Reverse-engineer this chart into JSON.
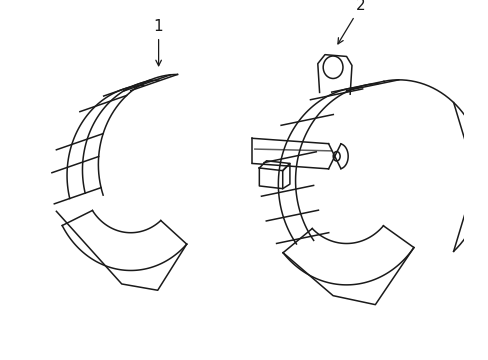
{
  "background_color": "#ffffff",
  "line_color": "#1a1a1a",
  "line_width": 1.1,
  "fig_width": 4.89,
  "fig_height": 3.6,
  "dpi": 100
}
